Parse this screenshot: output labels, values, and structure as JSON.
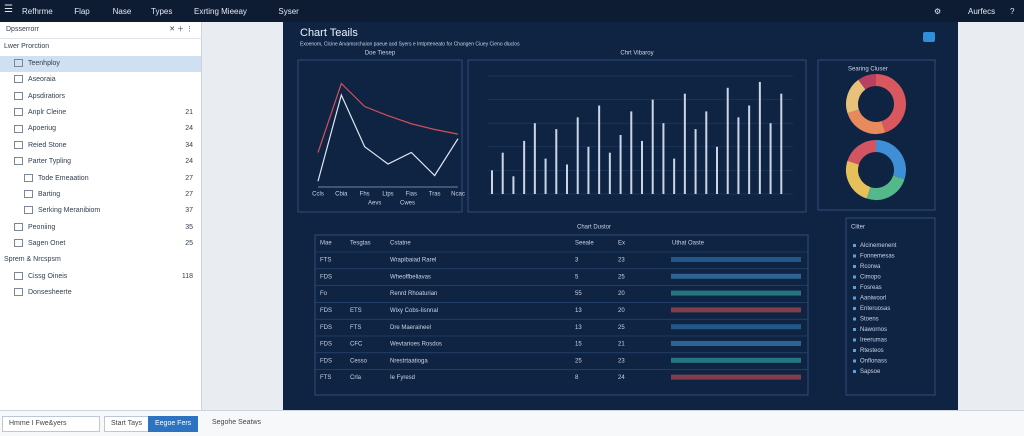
{
  "menu": [
    "Refhrme",
    "Flap",
    "Nase",
    "Types",
    "Exrting Mieeay",
    "Syser"
  ],
  "account": "Aurfecs",
  "sidebar": {
    "title": "Dpsserrorr",
    "sections": [
      {
        "title": "Lwer Prorction",
        "items": [
          {
            "label": "Teenhploy"
          },
          {
            "label": "Aseoraia"
          },
          {
            "label": "Apsdiratiors"
          },
          {
            "label": "Anplr Cleine",
            "count": 21
          },
          {
            "label": "Apoeriug",
            "count": 24
          },
          {
            "label": "Reied Stone",
            "count": 34
          },
          {
            "label": "Parter Typling",
            "count": 24,
            "children": [
              {
                "label": "Tode Emeaation",
                "count": 27
              },
              {
                "label": "Barting",
                "count": 27
              },
              {
                "label": "Serking Meranibiom",
                "count": 37
              }
            ]
          },
          {
            "label": "Peoniing",
            "count": 35
          },
          {
            "label": "Sagen Onet",
            "count": 25
          }
        ]
      },
      {
        "title": "Sprem & Nrcspsm",
        "items": [
          {
            "label": "Cissg Oineis",
            "count": 118
          },
          {
            "label": "Donsesheerte"
          }
        ]
      }
    ]
  },
  "footer": {
    "input": "Hmme I Fwe&yers",
    "button1": "Start Tays",
    "button2": "Eegoe Fers",
    "status": "Segohe Seatws"
  },
  "dashboard": {
    "title": "Chart Teails",
    "subtitle": "Exoenom, Clcine Arvamsrchaion paeue aod Syers e Imtprteneato for Changen Ciuey Cieno dluclos",
    "line_chart": {
      "type": "line",
      "title": "Doe Tiesep",
      "categories": [
        "Ccls",
        "Cbia",
        "Fhs",
        "Ltps",
        "Fias",
        "Tras",
        "Ncac"
      ],
      "ylim": [
        0,
        100
      ],
      "series": [
        {
          "name": "Aevs",
          "color": "#d0505a",
          "values": [
            30,
            90,
            70,
            62,
            55,
            50,
            46
          ]
        },
        {
          "name": "Cwes",
          "color": "#dfe7f3",
          "values": [
            5,
            80,
            35,
            20,
            30,
            10,
            42
          ]
        }
      ]
    },
    "bar_chart": {
      "type": "bar",
      "title": "Chrt Vibaroy",
      "ylim": [
        0,
        100
      ],
      "color": "#c9d6e8",
      "values": [
        20,
        35,
        15,
        45,
        60,
        30,
        55,
        25,
        65,
        40,
        75,
        35,
        50,
        70,
        45,
        80,
        60,
        30,
        85,
        55,
        70,
        40,
        90,
        65,
        75,
        95,
        60,
        85
      ]
    },
    "donut_panel": {
      "title": "Searing Cluser",
      "donuts": [
        {
          "type": "pie",
          "values": [
            45,
            25,
            20,
            10
          ],
          "colors": [
            "#d9575f",
            "#e88a5c",
            "#e8c27a",
            "#b9405e"
          ]
        },
        {
          "type": "pie",
          "values": [
            30,
            25,
            25,
            20
          ],
          "colors": [
            "#3f8fd6",
            "#53b98a",
            "#e6c15a",
            "#d45562"
          ]
        }
      ]
    },
    "table": {
      "title": "Chart Dustor",
      "columns": [
        "Mae",
        "Tesgtas",
        "Cstatne",
        "Seeale",
        "Ex",
        "Uthat Oaste"
      ],
      "rows": [
        {
          "name": "FTS",
          "desc": "Wrapibaiad Rarel",
          "a": 3,
          "b": 23
        },
        {
          "name": "FDS",
          "desc": "Wheoffbeliavas",
          "a": 5,
          "b": 25
        },
        {
          "name": "Fo",
          "desc": "Renrd Rhoaturian",
          "a": 55,
          "b": 20
        },
        {
          "name": "FDS",
          "tag": "ETS",
          "desc": "Wixy Cobs-Iisnnal",
          "a": 13,
          "b": 20
        },
        {
          "name": "FDS",
          "tag": "FTS",
          "desc": "Dre Maeraineel",
          "a": 13,
          "b": 25
        },
        {
          "name": "FDS",
          "tag": "CFC",
          "desc": "Wevtarioes Rosdos",
          "a": 15,
          "b": 21
        },
        {
          "name": "FDS",
          "tag": "Cesso",
          "desc": "Nrestrtaatioga",
          "a": 25,
          "b": 23
        },
        {
          "name": "FTS",
          "tag": "Crla",
          "desc": "Ie Fyresd",
          "a": 8,
          "b": 24
        }
      ]
    },
    "legend": {
      "title": "Cliter",
      "items": [
        "Alcinemenent",
        "Fonnemesas",
        "Rcorwa",
        "Cimopo",
        "Fosreas",
        "Aaniwoorl",
        "Enteruosas",
        "Stoens",
        "Nawornos",
        "Ireerumas",
        "Rtesteos",
        "Onflonass",
        "Sapsoe"
      ]
    }
  }
}
